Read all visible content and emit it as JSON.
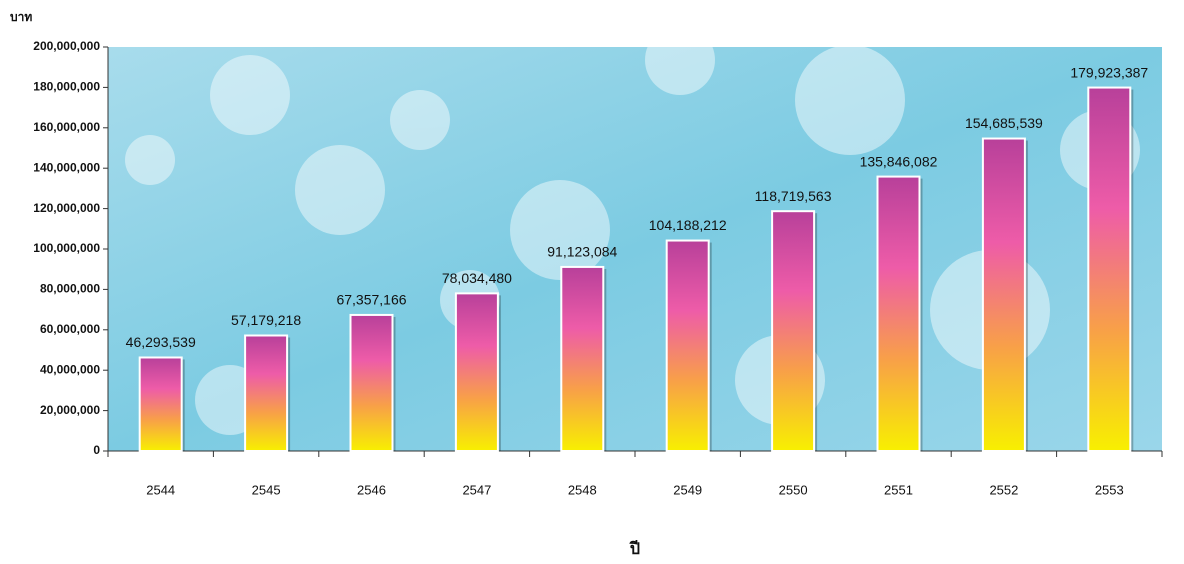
{
  "chart_data": {
    "type": "bar",
    "y_label": "บาท",
    "x_label": "ปี",
    "categories": [
      "2544",
      "2545",
      "2546",
      "2547",
      "2548",
      "2549",
      "2550",
      "2551",
      "2552",
      "2553"
    ],
    "values": [
      46293539,
      57179218,
      67357166,
      78034480,
      91123084,
      104188212,
      118719563,
      135846082,
      154685539,
      179923387
    ],
    "value_labels": [
      "46,293,539",
      "57,179,218",
      "67,357,166",
      "78,034,480",
      "91,123,084",
      "104,188,212",
      "118,719,563",
      "135,846,082",
      "154,685,539",
      "179,923,387"
    ],
    "colors": [
      "#b8409a",
      "#ee5ca8",
      "#f8a048",
      "#f8f000"
    ],
    "ylim": [
      0,
      200000000
    ],
    "yticks": [
      0,
      {
        "value": 20000000,
        "label": "20,000,000"
      },
      {
        "value": 40000000,
        "label": "40,000,000"
      },
      {
        "value": 60000000,
        "label": "60,000,000"
      },
      {
        "value": 80000000,
        "label": "80,000,000"
      },
      {
        "value": 100000000,
        "label": "100,000,000"
      },
      {
        "value": 120000000,
        "label": "120,000,000"
      },
      {
        "value": 140000000,
        "label": "140,000,000"
      },
      {
        "value": 160000000,
        "label": "160,000,000"
      },
      {
        "value": 180000000,
        "label": "180,000,000"
      },
      {
        "value": 200000000,
        "label": "200,000,000"
      }
    ],
    "grid": false
  }
}
